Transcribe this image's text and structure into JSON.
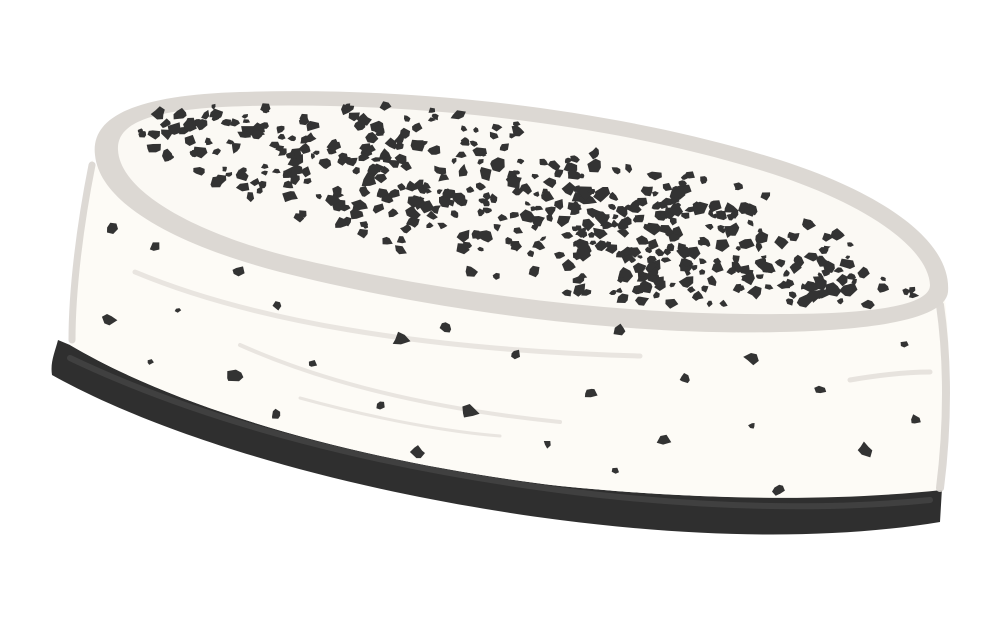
{
  "illustration": {
    "subject": "cheesecake-icon",
    "colors": {
      "background": "#ffffff",
      "cream": "#fdfbf6",
      "rim": "#dcd8d3",
      "rim_inner": "#e7e3de",
      "crust": "#2f2f2f",
      "crust_highlight": "#454545",
      "crumbs": "#333333",
      "shadow_stroke": "#d9d5d0"
    }
  }
}
